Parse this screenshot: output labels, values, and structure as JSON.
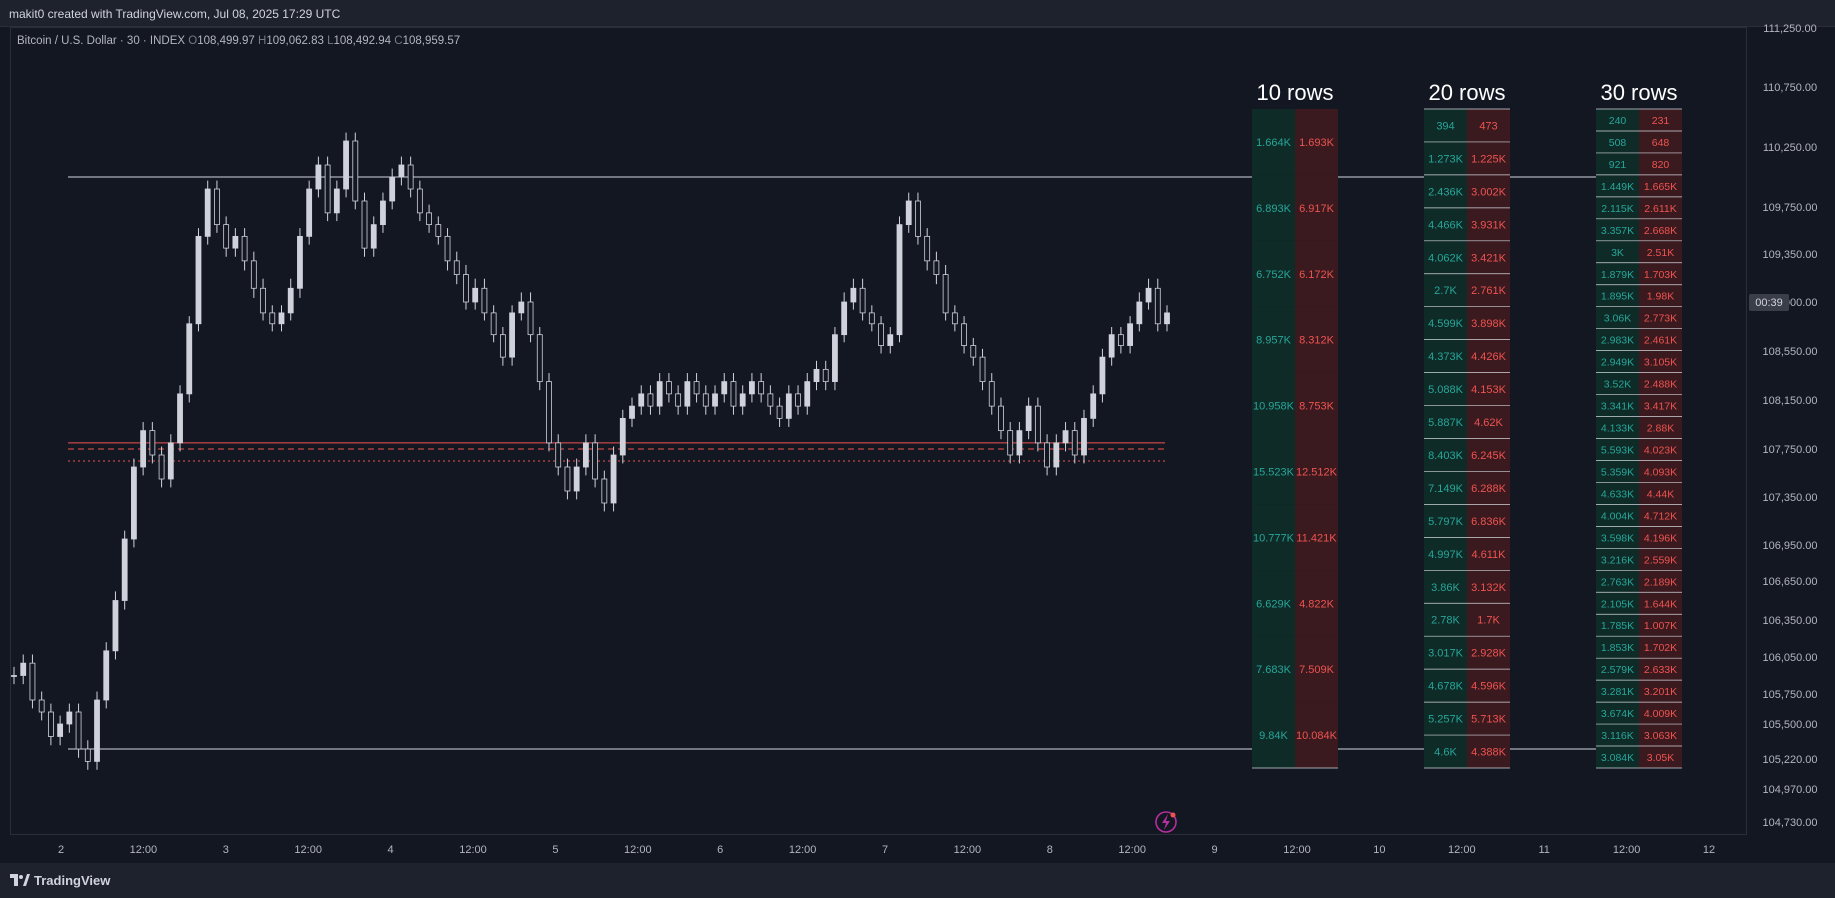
{
  "header": {
    "attribution": "makit0 created with TradingView.com, Jul 08, 2025 17:29 UTC"
  },
  "symbol": {
    "name": "Bitcoin / U.S. Dollar · 30 · INDEX",
    "o_label": "O",
    "o": "108,499.97",
    "h_label": "H",
    "h": "109,062.83",
    "l_label": "L",
    "l": "108,492.94",
    "c_label": "C",
    "c": "108,959.57"
  },
  "footer": {
    "brand": "TradingView"
  },
  "colors": {
    "buy": "#26a69a",
    "sell": "#ef5350",
    "buy_bg": "#0f2b27",
    "sell_bg": "#3a1a1f",
    "candle": "#cfd2da",
    "accent": "#b62fa0"
  },
  "icons": {
    "flash": "lightning-bolt-icon"
  },
  "chart_data": {
    "type": "candlestick-volume-profile",
    "price_axis": {
      "ticks": [
        "111,250.00",
        "110,750.00",
        "110,250.00",
        "109,750.00",
        "109,350.00",
        "109,000.00",
        "108,550.00",
        "108,150.00",
        "107,750.00",
        "107,350.00",
        "106,950.00",
        "106,650.00",
        "106,350.00",
        "106,050.00",
        "105,750.00",
        "105,500.00",
        "105,220.00",
        "104,970.00",
        "104,730.00"
      ],
      "current_tag": "00:39"
    },
    "time_axis": {
      "ticks": [
        "2",
        "12:00",
        "3",
        "12:00",
        "4",
        "12:00",
        "5",
        "12:00",
        "6",
        "12:00",
        "7",
        "12:00",
        "8",
        "12:00",
        "9",
        "12:00",
        "10",
        "12:00",
        "11",
        "12:00",
        "12"
      ]
    },
    "price_path": [
      105900,
      106000,
      105700,
      105600,
      105400,
      105500,
      105600,
      105300,
      105200,
      105700,
      106100,
      106500,
      107000,
      107600,
      107900,
      107700,
      107500,
      107800,
      108200,
      108800,
      109500,
      109900,
      109600,
      109400,
      109500,
      109300,
      109100,
      108900,
      108800,
      108900,
      109100,
      109500,
      109900,
      110100,
      109700,
      109900,
      110300,
      109800,
      109400,
      109600,
      109800,
      110000,
      110100,
      109900,
      109700,
      109600,
      109500,
      109300,
      109200,
      109000,
      109100,
      108900,
      108700,
      108500,
      108900,
      109000,
      108700,
      108300,
      107800,
      107600,
      107400,
      107600,
      107800,
      107500,
      107300,
      107700,
      108000,
      108100,
      108200,
      108100,
      108300,
      108200,
      108100,
      108300,
      108200,
      108100,
      108200,
      108300,
      108100,
      108200,
      108300,
      108200,
      108100,
      108000,
      108200,
      108100,
      108300,
      108400,
      108300,
      108700,
      109000,
      109100,
      108900,
      108800,
      108600,
      108700,
      109600,
      109800,
      109500,
      109300,
      109200,
      108900,
      108800,
      108600,
      108500,
      108300,
      108100,
      107900,
      107700,
      107900,
      108100,
      107800,
      107600,
      107800,
      107900,
      107700,
      108000,
      108200,
      108500,
      108700,
      108600,
      108800,
      109000,
      109100,
      108800,
      108900
    ],
    "levels": {
      "top": 110000,
      "bottom": 105300,
      "red_upper": 107800,
      "red_dashed": 107750,
      "red_dotted": 107650
    },
    "profiles": [
      {
        "title": "10 rows",
        "buy": [
          "1.664K",
          "6.893K",
          "6.752K",
          "8.957K",
          "10.958K",
          "15.523K",
          "10.777K",
          "6.629K",
          "7.683K",
          "9.84K"
        ],
        "sell": [
          "1.693K",
          "6.917K",
          "6.172K",
          "8.312K",
          "8.753K",
          "12.512K",
          "11.421K",
          "4.822K",
          "7.509K",
          "10.084K"
        ]
      },
      {
        "title": "20 rows",
        "buy": [
          "394",
          "1.273K",
          "2.436K",
          "4.466K",
          "4.062K",
          "2.7K",
          "4.599K",
          "4.373K",
          "5.088K",
          "5.887K",
          "8.403K",
          "7.149K",
          "5.797K",
          "4.997K",
          "3.86K",
          "2.78K",
          "3.017K",
          "4.678K",
          "5.257K",
          "4.6K"
        ],
        "sell": [
          "473",
          "1.225K",
          "3.002K",
          "3.931K",
          "3.421K",
          "2.761K",
          "3.898K",
          "4.426K",
          "4.153K",
          "4.62K",
          "6.245K",
          "6.288K",
          "6.836K",
          "4.611K",
          "3.132K",
          "1.7K",
          "2.928K",
          "4.596K",
          "5.713K",
          "4.388K"
        ]
      },
      {
        "title": "30 rows",
        "buy": [
          "240",
          "508",
          "921",
          "1.449K",
          "2.115K",
          "3.357K",
          "3K",
          "1.879K",
          "1.895K",
          "3.06K",
          "2.983K",
          "2.949K",
          "3.52K",
          "3.341K",
          "4.133K",
          "5.593K",
          "5.359K",
          "4.633K",
          "4.004K",
          "3.598K",
          "3.216K",
          "2.763K",
          "2.105K",
          "1.785K",
          "1.853K",
          "2.579K",
          "3.281K",
          "3.674K",
          "3.116K",
          "3.084K"
        ],
        "sell": [
          "231",
          "648",
          "820",
          "1.665K",
          "2.611K",
          "2.668K",
          "2.51K",
          "1.703K",
          "1.98K",
          "2.773K",
          "2.461K",
          "3.105K",
          "2.488K",
          "3.417K",
          "2.88K",
          "4.023K",
          "4.093K",
          "4.44K",
          "4.712K",
          "4.196K",
          "2.559K",
          "2.189K",
          "1.644K",
          "1.007K",
          "1.702K",
          "2.633K",
          "3.201K",
          "4.009K",
          "3.063K",
          "3.05K"
        ]
      }
    ]
  }
}
